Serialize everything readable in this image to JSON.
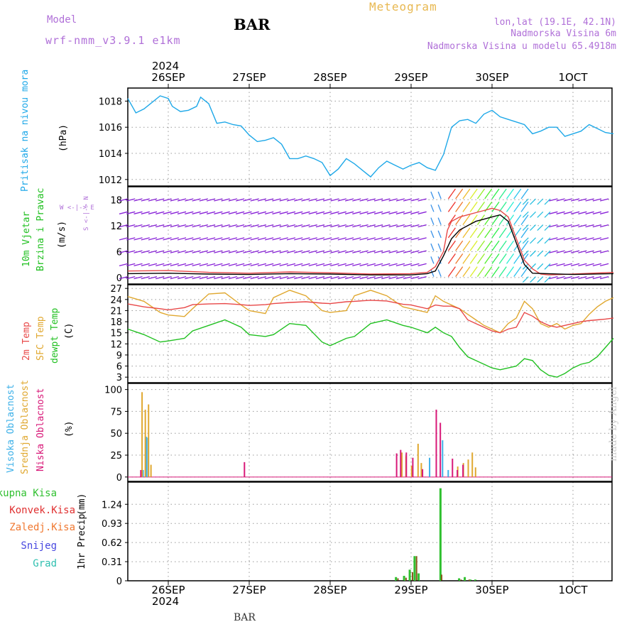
{
  "header": {
    "model_label": "Model",
    "model_name": "wrf-nmm_v3.9.1 e1km",
    "station": "BAR",
    "title": "Meteogram",
    "lonlat": "lon,lat (19.1E, 42.1N)",
    "altitude": "Nadmorska Visina 6m",
    "model_altitude": "Nadmorska Visina u modelu 65.4918m"
  },
  "footer": {
    "station": "BAR",
    "credit": "made by Angel"
  },
  "colors": {
    "pressure": "#1ea8e8",
    "t2m": "#e84848",
    "sfc": "#e0a830",
    "dewpt": "#20c020",
    "high_cloud": "#3cb0e8",
    "mid_cloud": "#e0a830",
    "low_cloud": "#d81878",
    "total_precip": "#30c030",
    "conv_precip": "#e03030",
    "frozen_precip": "#f07830",
    "snow": "#4848e0",
    "graupel": "#30c0b0",
    "wind_default": "#8820d8",
    "model": "#b070d8",
    "title_color": "#e8b850"
  },
  "chart_data": [
    {
      "type": "line",
      "panel": "pressure",
      "ylabel": "Pritisak na nivou mora",
      "unit": "(hPa)",
      "ylim": [
        1011.5,
        1019
      ],
      "yticks": [
        1012,
        1014,
        1016,
        1018
      ],
      "x_top_year": "2024",
      "x_ticks": [
        "26SEP",
        "27SEP",
        "28SEP",
        "29SEP",
        "30SEP",
        "1OCT"
      ],
      "grid": true,
      "x_day": [
        -0.5,
        -0.4,
        -0.3,
        -0.2,
        -0.1,
        0.0,
        0.05,
        0.15,
        0.25,
        0.35,
        0.4,
        0.5,
        0.6,
        0.7,
        0.8,
        0.9,
        1.0,
        1.1,
        1.2,
        1.3,
        1.4,
        1.5,
        1.6,
        1.7,
        1.8,
        1.9,
        2.0,
        2.1,
        2.2,
        2.3,
        2.4,
        2.5,
        2.6,
        2.7,
        2.8,
        2.9,
        3.0,
        3.1,
        3.2,
        3.3,
        3.4,
        3.5,
        3.6,
        3.7,
        3.8,
        3.9,
        4.0,
        4.1,
        4.2,
        4.3,
        4.4,
        4.5,
        4.6,
        4.7,
        4.8,
        4.9,
        5.0,
        5.1,
        5.2,
        5.3,
        5.4,
        5.5
      ],
      "y": [
        1018.2,
        1017.1,
        1017.4,
        1017.9,
        1018.4,
        1018.2,
        1017.6,
        1017.2,
        1017.3,
        1017.6,
        1018.3,
        1017.8,
        1016.3,
        1016.4,
        1016.2,
        1016.1,
        1015.4,
        1014.9,
        1015.0,
        1015.2,
        1014.7,
        1013.6,
        1013.6,
        1013.8,
        1013.6,
        1013.3,
        1012.3,
        1012.8,
        1013.6,
        1013.2,
        1012.7,
        1012.2,
        1012.9,
        1013.4,
        1013.1,
        1012.8,
        1013.1,
        1013.3,
        1012.9,
        1012.7,
        1013.9,
        1016.0,
        1016.5,
        1016.6,
        1016.3,
        1017.0,
        1017.3,
        1016.8,
        1016.6,
        1016.4,
        1016.2,
        1015.5,
        1015.7,
        1016.0,
        1016.0,
        1015.3,
        1015.5,
        1015.7,
        1016.2,
        1015.9,
        1015.6,
        1015.5
      ]
    },
    {
      "type": "line",
      "panel": "wind",
      "ylabel": "10m Vjetar",
      "ylabel2": "Brzina i Pravac",
      "unit": "(m/s)",
      "compass": "W <-|-> E",
      "compass_vertical": "S <-|-> N",
      "ylim": [
        -1.5,
        21
      ],
      "yticks": [
        0,
        6,
        12,
        18
      ],
      "grid": true,
      "gust_x_day": [
        -0.5,
        0.0,
        0.5,
        1.0,
        1.5,
        2.0,
        2.5,
        3.0,
        3.2,
        3.3,
        3.4,
        3.45,
        3.5,
        3.6,
        3.7,
        3.8,
        3.9,
        4.0,
        4.1,
        4.2,
        4.3,
        4.4,
        4.5,
        4.6,
        4.7,
        5.0,
        5.5
      ],
      "gust_y": [
        1.5,
        1.6,
        1.2,
        1.0,
        1.3,
        1.1,
        0.8,
        0.9,
        1.2,
        2.5,
        6.0,
        11.0,
        13.0,
        14.0,
        14.5,
        15.0,
        15.5,
        16.0,
        15.5,
        14.0,
        9.0,
        4.0,
        2.0,
        0.8,
        0.6,
        0.8,
        1.2
      ],
      "speed_x_day": [
        -0.5,
        0.0,
        0.5,
        1.0,
        1.5,
        2.0,
        2.5,
        3.0,
        3.2,
        3.3,
        3.4,
        3.5,
        3.6,
        3.7,
        3.8,
        3.9,
        4.0,
        4.1,
        4.2,
        4.3,
        4.4,
        4.5,
        5.0,
        5.5
      ],
      "speed_y": [
        0.9,
        1.0,
        0.8,
        0.7,
        0.9,
        0.8,
        0.6,
        0.6,
        0.9,
        1.5,
        5.0,
        9.0,
        11.0,
        12.0,
        13.0,
        13.5,
        14.0,
        14.5,
        13.0,
        8.0,
        3.0,
        1.0,
        0.7,
        0.9
      ]
    },
    {
      "type": "line",
      "panel": "temperature",
      "ylabel": "2m Temp",
      "ylabel2": "SFC Temp",
      "ylabel3": "dewpt Temp",
      "unit": "(C)",
      "ylim": [
        1.5,
        28
      ],
      "yticks": [
        3,
        6,
        9,
        12,
        15,
        18,
        21,
        24,
        27
      ],
      "grid": true,
      "x_day": [
        -0.5,
        -0.3,
        -0.1,
        0.0,
        0.2,
        0.3,
        0.5,
        0.7,
        0.9,
        1.0,
        1.2,
        1.3,
        1.5,
        1.7,
        1.9,
        2.0,
        2.2,
        2.3,
        2.5,
        2.7,
        2.9,
        3.0,
        3.2,
        3.3,
        3.4,
        3.5,
        3.6,
        3.7,
        3.8,
        3.9,
        4.0,
        4.1,
        4.2,
        4.3,
        4.4,
        4.5,
        4.6,
        4.7,
        4.8,
        4.9,
        5.0,
        5.1,
        5.2,
        5.3,
        5.4,
        5.5
      ],
      "t2m": [
        22.8,
        22.0,
        21.5,
        21.2,
        21.8,
        22.6,
        22.8,
        22.9,
        22.6,
        22.4,
        22.6,
        22.9,
        23.2,
        23.4,
        23.0,
        22.9,
        23.4,
        23.5,
        23.8,
        23.6,
        22.7,
        22.5,
        21.5,
        22.5,
        22.2,
        22.2,
        21.5,
        18.5,
        17.5,
        16.5,
        15.5,
        15.0,
        16.0,
        16.5,
        20.5,
        19.5,
        18.0,
        17.0,
        16.5,
        17.0,
        17.5,
        18.0,
        18.3,
        18.5,
        18.7,
        19.0
      ],
      "sfc": [
        24.8,
        23.5,
        20.5,
        19.8,
        19.4,
        21.5,
        25.5,
        25.8,
        22.5,
        21.0,
        20.2,
        24.5,
        26.5,
        25.0,
        21.0,
        20.5,
        21.0,
        25.0,
        26.5,
        25.0,
        22.0,
        21.5,
        20.5,
        25.0,
        23.5,
        22.5,
        21.5,
        20.0,
        18.5,
        17.0,
        16.0,
        15.0,
        17.5,
        19.0,
        23.5,
        21.5,
        17.5,
        16.5,
        17.5,
        16.0,
        17.0,
        17.5,
        20.0,
        22.0,
        23.5,
        24.5
      ],
      "dewpt": [
        16.0,
        14.5,
        12.5,
        12.8,
        13.5,
        15.5,
        17.0,
        18.5,
        16.5,
        14.5,
        14.0,
        14.5,
        17.5,
        17.0,
        12.5,
        11.5,
        13.5,
        14.0,
        17.5,
        18.5,
        17.0,
        16.5,
        15.0,
        16.5,
        15.0,
        14.0,
        11.0,
        8.5,
        7.5,
        6.5,
        5.5,
        5.0,
        5.5,
        6.0,
        8.0,
        7.5,
        5.0,
        3.5,
        3.0,
        4.0,
        5.5,
        6.5,
        7.0,
        8.5,
        11.0,
        13.5
      ]
    },
    {
      "type": "bar",
      "panel": "clouds",
      "ylabel": "Visoka Oblacnost",
      "ylabel2": "Srednja Oblacnost",
      "ylabel3": "Niska Oblacnost",
      "unit": "(%)",
      "ylim": [
        -5,
        107
      ],
      "yticks": [
        0,
        25,
        50,
        75,
        100
      ],
      "grid": true,
      "high": [
        [
          -0.32,
          8
        ],
        [
          -0.28,
          46
        ],
        [
          -0.26,
          45
        ],
        [
          3.12,
          6
        ],
        [
          3.22,
          22
        ],
        [
          3.38,
          42
        ],
        [
          3.45,
          8
        ]
      ],
      "mid": [
        [
          -0.35,
          97
        ],
        [
          -0.31,
          77
        ],
        [
          -0.27,
          83
        ],
        [
          -0.24,
          14
        ],
        [
          2.86,
          28
        ],
        [
          2.91,
          24
        ],
        [
          2.98,
          13
        ],
        [
          3.06,
          38
        ],
        [
          3.1,
          16
        ],
        [
          3.55,
          12
        ],
        [
          3.62,
          16
        ],
        [
          3.68,
          20
        ],
        [
          3.73,
          28
        ],
        [
          3.77,
          11
        ]
      ],
      "low": [
        [
          -0.33,
          8
        ],
        [
          0.95,
          17
        ],
        [
          2.83,
          27
        ],
        [
          2.88,
          31
        ],
        [
          2.95,
          28
        ],
        [
          3.03,
          22
        ],
        [
          3.15,
          9
        ],
        [
          3.32,
          77
        ],
        [
          3.37,
          62
        ],
        [
          3.52,
          21
        ],
        [
          3.58,
          8
        ],
        [
          3.65,
          14
        ]
      ]
    },
    {
      "type": "bar",
      "panel": "precipitation",
      "ylabel": "1hr Precip",
      "unit": "(mm)",
      "ylim": [
        0,
        1.6
      ],
      "yticks": [
        0,
        0.31,
        0.62,
        0.93,
        1.24
      ],
      "x_ticks": [
        "26SEP",
        "27SEP",
        "28SEP",
        "29SEP",
        "30SEP",
        "1OCT"
      ],
      "x_bottom_year": "2024",
      "grid": true,
      "legend": [
        "Ukupna Kisa",
        "Konvek.Kisa",
        "Zaledj.Kisa",
        "Snijeg",
        "Grad"
      ],
      "total": [
        [
          2.8,
          0.06
        ],
        [
          2.9,
          0.08
        ],
        [
          2.97,
          0.18
        ],
        [
          3.03,
          0.4
        ],
        [
          3.08,
          0.12
        ],
        [
          3.35,
          1.5
        ],
        [
          3.58,
          0.04
        ],
        [
          3.65,
          0.06
        ],
        [
          3.72,
          0.02
        ],
        [
          3.78,
          0.02
        ]
      ],
      "convective": [
        [
          2.82,
          0.04
        ],
        [
          2.92,
          0.05
        ],
        [
          3.0,
          0.14
        ],
        [
          3.05,
          0.4
        ],
        [
          3.36,
          0.1
        ],
        [
          3.6,
          0.02
        ],
        [
          3.7,
          0.02
        ]
      ]
    }
  ]
}
